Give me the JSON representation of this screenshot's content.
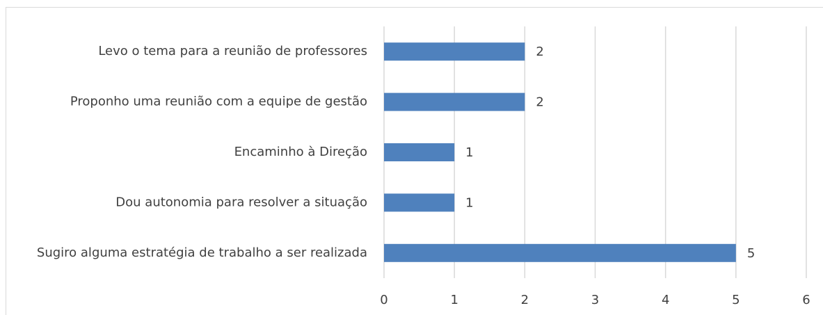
{
  "chart_data": {
    "type": "barh",
    "categories": [
      "Levo o tema para a reunião de professores",
      "Proponho uma reunião com a equipe de gestão",
      "Encaminho à Direção",
      "Dou autonomia para resolver a situação",
      "Sugiro alguma estratégia de trabalho a ser realizada"
    ],
    "values": [
      2,
      2,
      1,
      1,
      5
    ],
    "color": "#4f81bd",
    "xlim": [
      0,
      6
    ],
    "xticks": [
      0,
      1,
      2,
      3,
      4,
      5,
      6
    ],
    "grid": true
  }
}
